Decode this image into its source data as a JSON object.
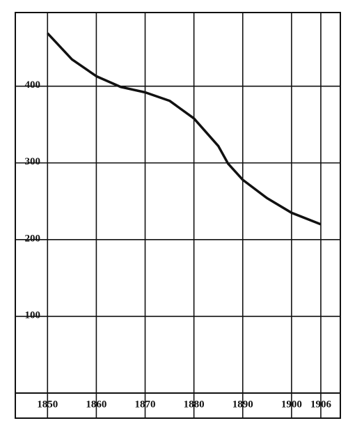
{
  "chart_data": {
    "type": "line",
    "x": [
      1850,
      1855,
      1860,
      1865,
      1870,
      1875,
      1880,
      1885,
      1887,
      1890,
      1895,
      1900,
      1906
    ],
    "series": [
      {
        "color": "#111111",
        "values": [
          469,
          435,
          413,
          399,
          392,
          381,
          358,
          322,
          299,
          278,
          254,
          235,
          220
        ]
      }
    ],
    "xlim": [
      1843.4,
      1910
    ],
    "ylim": [
      0,
      496
    ],
    "xticks": [
      1850,
      1860,
      1870,
      1880,
      1890,
      1900,
      1906
    ],
    "yticks": [
      100,
      200,
      300,
      400
    ],
    "grid": true
  }
}
